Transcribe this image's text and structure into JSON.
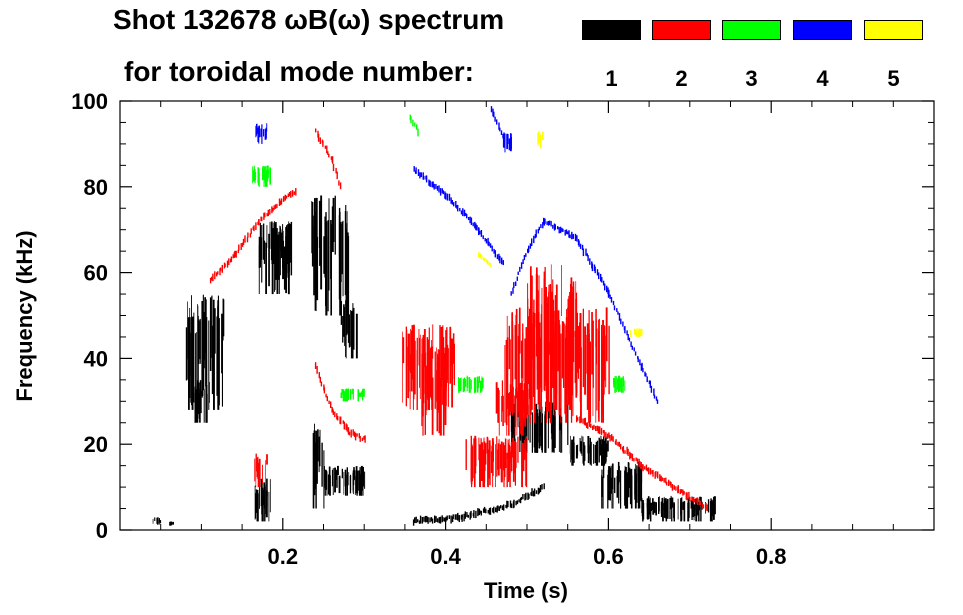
{
  "chart_data": {
    "type": "scatter",
    "title_line1": "Shot 132678 ωB(ω) spectrum",
    "title_line2": "for toroidal mode number:",
    "xlabel": "Time (s)",
    "ylabel": "Frequency (kHz)",
    "xlim": [
      0.0,
      1.0
    ],
    "ylim": [
      0,
      100
    ],
    "x_ticks": [
      0.2,
      0.4,
      0.6,
      0.8
    ],
    "x_tick_labels": [
      "0.2",
      "0.4",
      "0.6",
      "0.8"
    ],
    "y_ticks": [
      0,
      20,
      40,
      60,
      80,
      100
    ],
    "y_tick_labels": [
      "0",
      "20",
      "40",
      "60",
      "80",
      "100"
    ],
    "legend": [
      {
        "label": "1",
        "color": "#000000"
      },
      {
        "label": "2",
        "color": "#ff0000"
      },
      {
        "label": "3",
        "color": "#00ff00"
      },
      {
        "label": "4",
        "color": "#0000ff"
      },
      {
        "label": "5",
        "color": "#ffff00"
      }
    ],
    "series": [
      {
        "name": "n=1",
        "color": "#000000",
        "blobs": [
          {
            "t0": 0.08,
            "t1": 0.13,
            "f0": 28,
            "f1": 55
          },
          {
            "t0": 0.09,
            "t1": 0.11,
            "f0": 25,
            "f1": 35
          },
          {
            "t0": 0.165,
            "t1": 0.185,
            "f0": 2,
            "f1": 12
          },
          {
            "t0": 0.17,
            "t1": 0.21,
            "f0": 55,
            "f1": 72
          },
          {
            "t0": 0.185,
            "t1": 0.21,
            "f0": 62,
            "f1": 72
          },
          {
            "t0": 0.235,
            "t1": 0.28,
            "f0": 50,
            "f1": 78
          },
          {
            "t0": 0.27,
            "t1": 0.29,
            "f0": 40,
            "f1": 55
          },
          {
            "t0": 0.235,
            "t1": 0.25,
            "f0": 5,
            "f1": 25
          },
          {
            "t0": 0.25,
            "t1": 0.3,
            "f0": 8,
            "f1": 15
          },
          {
            "t0": 0.48,
            "t1": 0.55,
            "f0": 18,
            "f1": 30
          },
          {
            "t0": 0.55,
            "t1": 0.6,
            "f0": 15,
            "f1": 22
          },
          {
            "t0": 0.59,
            "t1": 0.64,
            "f0": 5,
            "f1": 16
          },
          {
            "t0": 0.64,
            "t1": 0.73,
            "f0": 2,
            "f1": 8
          },
          {
            "t0": 0.04,
            "t1": 0.05,
            "f0": 1,
            "f1": 3
          },
          {
            "t0": 0.06,
            "t1": 0.065,
            "f0": 1,
            "f1": 2
          }
        ],
        "tracks": [
          {
            "t": [
              0.36,
              0.42,
              0.48,
              0.52
            ],
            "f": [
              2,
              3,
              6,
              10
            ]
          }
        ]
      },
      {
        "name": "n=2",
        "color": "#ff0000",
        "blobs": [
          {
            "t0": 0.345,
            "t1": 0.41,
            "f0": 28,
            "f1": 48
          },
          {
            "t0": 0.37,
            "t1": 0.4,
            "f0": 22,
            "f1": 42
          },
          {
            "t0": 0.47,
            "t1": 0.6,
            "f0": 25,
            "f1": 52
          },
          {
            "t0": 0.5,
            "t1": 0.56,
            "f0": 28,
            "f1": 62
          },
          {
            "t0": 0.46,
            "t1": 0.5,
            "f0": 22,
            "f1": 35
          },
          {
            "t0": 0.42,
            "t1": 0.5,
            "f0": 10,
            "f1": 22
          },
          {
            "t0": 0.165,
            "t1": 0.18,
            "f0": 10,
            "f1": 18
          }
        ],
        "tracks": [
          {
            "t": [
              0.11,
              0.14,
              0.17,
              0.2,
              0.215
            ],
            "f": [
              58,
              64,
              72,
              77,
              79
            ]
          },
          {
            "t": [
              0.24,
              0.26,
              0.27
            ],
            "f": [
              93,
              86,
              80
            ]
          },
          {
            "t": [
              0.24,
              0.26,
              0.28,
              0.3
            ],
            "f": [
              38,
              28,
              23,
              21
            ]
          },
          {
            "t": [
              0.56,
              0.6,
              0.64,
              0.68,
              0.72
            ],
            "f": [
              26,
              22,
              15,
              10,
              5
            ]
          }
        ]
      },
      {
        "name": "n=3",
        "color": "#00ff00",
        "blobs": [
          {
            "t0": 0.16,
            "t1": 0.185,
            "f0": 80,
            "f1": 85
          },
          {
            "t0": 0.27,
            "t1": 0.3,
            "f0": 30,
            "f1": 33
          },
          {
            "t0": 0.415,
            "t1": 0.445,
            "f0": 32,
            "f1": 36
          },
          {
            "t0": 0.605,
            "t1": 0.62,
            "f0": 32,
            "f1": 36
          }
        ],
        "tracks": [
          {
            "t": [
              0.355,
              0.365
            ],
            "f": [
              96,
              93
            ]
          }
        ]
      },
      {
        "name": "n=4",
        "color": "#0000ff",
        "blobs": [
          {
            "t0": 0.165,
            "t1": 0.18,
            "f0": 90,
            "f1": 95
          },
          {
            "t0": 0.47,
            "t1": 0.48,
            "f0": 88,
            "f1": 93
          }
        ],
        "tracks": [
          {
            "t": [
              0.36,
              0.4,
              0.44,
              0.47
            ],
            "f": [
              84,
              78,
              70,
              62
            ]
          },
          {
            "t": [
              0.48,
              0.5,
              0.52,
              0.56,
              0.6,
              0.64,
              0.66
            ],
            "f": [
              55,
              65,
              72,
              68,
              55,
              38,
              30
            ]
          },
          {
            "t": [
              0.455,
              0.47
            ],
            "f": [
              98,
              92
            ]
          }
        ]
      },
      {
        "name": "n=5",
        "color": "#ffff00",
        "blobs": [
          {
            "t0": 0.51,
            "t1": 0.52,
            "f0": 89,
            "f1": 93
          },
          {
            "t0": 0.625,
            "t1": 0.64,
            "f0": 45,
            "f1": 47
          }
        ],
        "tracks": [
          {
            "t": [
              0.44,
              0.455
            ],
            "f": [
              64,
              62
            ]
          }
        ]
      }
    ]
  }
}
